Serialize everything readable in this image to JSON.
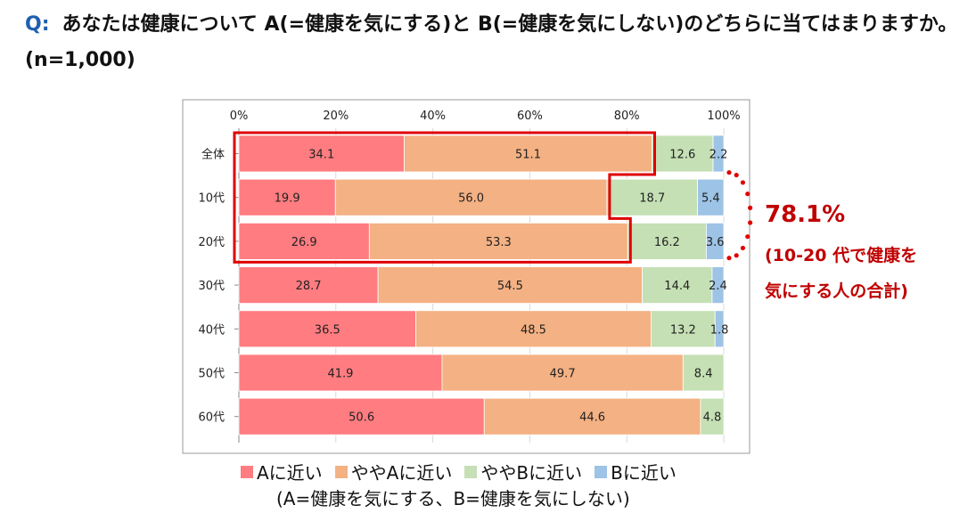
{
  "question": {
    "label": "Q:",
    "text": "あなたは健康について A(=健康を気にする)と B(=健康を気にしない)のどちらに当てはまりますか。(n=1,000)"
  },
  "callout": {
    "value": "78.1%",
    "line1": "(10-20 代で健康を",
    "line2": "気にする人の合計)"
  },
  "legend_note": "(A=健康を気にする、B=健康を気にしない)",
  "chart_data": {
    "type": "bar",
    "orientation": "horizontal",
    "stacked": "percent",
    "categories": [
      "全体",
      "10代",
      "20代",
      "30代",
      "40代",
      "50代",
      "60代"
    ],
    "xlim": [
      0,
      100
    ],
    "xticks": [
      "0%",
      "20%",
      "40%",
      "60%",
      "80%",
      "100%"
    ],
    "series": [
      {
        "name": "Aに近い",
        "color": "#ff7c80",
        "values": [
          34.1,
          19.9,
          26.9,
          28.7,
          36.5,
          41.9,
          50.6
        ]
      },
      {
        "name": "ややAに近い",
        "color": "#f4b183",
        "values": [
          51.1,
          56.0,
          53.3,
          54.5,
          48.5,
          49.7,
          44.6
        ]
      },
      {
        "name": "ややBに近い",
        "color": "#c5e0b4",
        "values": [
          12.6,
          18.7,
          16.2,
          14.4,
          13.2,
          8.4,
          4.8
        ]
      },
      {
        "name": "Bに近い",
        "color": "#9dc3e6",
        "values": [
          2.2,
          5.4,
          3.6,
          2.4,
          1.8,
          null,
          null
        ]
      }
    ],
    "highlight_color": "#e00000"
  }
}
